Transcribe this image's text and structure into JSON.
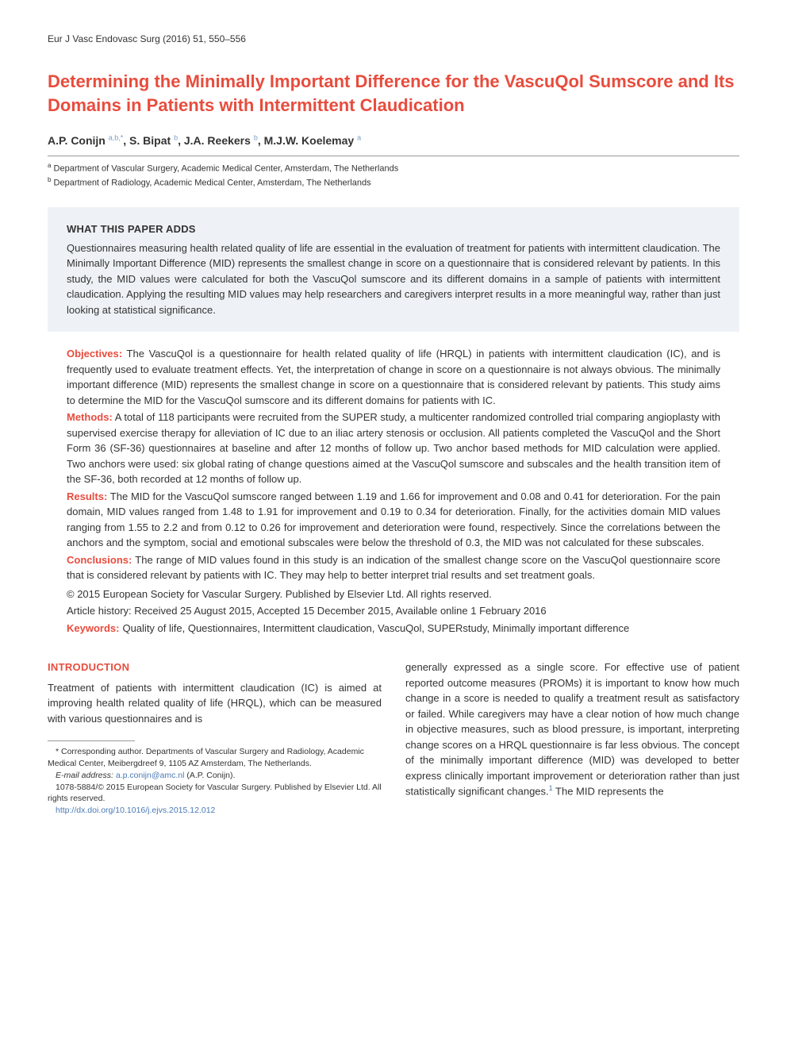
{
  "header_line": "Eur J Vasc Endovasc Surg (2016) 51, 550–556",
  "title": "Determining the Minimally Important Difference for the VascuQol Sumscore and Its Domains in Patients with Intermittent Claudication",
  "authors": [
    {
      "name": "A.P. Conijn",
      "marks": "a,b,*"
    },
    {
      "name": "S. Bipat",
      "marks": "b"
    },
    {
      "name": "J.A. Reekers",
      "marks": "b"
    },
    {
      "name": "M.J.W. Koelemay",
      "marks": "a"
    }
  ],
  "affiliations": [
    {
      "mark": "a",
      "text": "Department of Vascular Surgery, Academic Medical Center, Amsterdam, The Netherlands"
    },
    {
      "mark": "b",
      "text": "Department of Radiology, Academic Medical Center, Amsterdam, The Netherlands"
    }
  ],
  "box": {
    "heading": "WHAT THIS PAPER ADDS",
    "text": "Questionnaires measuring health related quality of life are essential in the evaluation of treatment for patients with intermittent claudication. The Minimally Important Difference (MID) represents the smallest change in score on a questionnaire that is considered relevant by patients. In this study, the MID values were calculated for both the VascuQol sumscore and its different domains in a sample of patients with intermittent claudication. Applying the resulting MID values may help researchers and caregivers interpret results in a more meaningful way, rather than just looking at statistical significance."
  },
  "abstract": {
    "objectives": {
      "label": "Objectives:",
      "text": " The VascuQol is a questionnaire for health related quality of life (HRQL) in patients with intermittent claudication (IC), and is frequently used to evaluate treatment effects. Yet, the interpretation of change in score on a questionnaire is not always obvious. The minimally important difference (MID) represents the smallest change in score on a questionnaire that is considered relevant by patients. This study aims to determine the MID for the VascuQol sumscore and its different domains for patients with IC."
    },
    "methods": {
      "label": "Methods:",
      "text": " A total of 118 participants were recruited from the SUPER study, a multicenter randomized controlled trial comparing angioplasty with supervised exercise therapy for alleviation of IC due to an iliac artery stenosis or occlusion. All patients completed the VascuQol and the Short Form 36 (SF-36) questionnaires at baseline and after 12 months of follow up. Two anchor based methods for MID calculation were applied. Two anchors were used: six global rating of change questions aimed at the VascuQol sumscore and subscales and the health transition item of the SF-36, both recorded at 12 months of follow up."
    },
    "results": {
      "label": "Results:",
      "text": " The MID for the VascuQol sumscore ranged between 1.19 and 1.66 for improvement and 0.08 and 0.41 for deterioration. For the pain domain, MID values ranged from 1.48 to 1.91 for improvement and 0.19 to 0.34 for deterioration. Finally, for the activities domain MID values ranging from 1.55 to 2.2 and from 0.12 to 0.26 for improvement and deterioration were found, respectively. Since the correlations between the anchors and the symptom, social and emotional subscales were below the threshold of 0.3, the MID was not calculated for these subscales."
    },
    "conclusions": {
      "label": "Conclusions:",
      "text": " The range of MID values found in this study is an indication of the smallest change score on the VascuQol questionnaire score that is considered relevant by patients with IC. They may help to better interpret trial results and set treatment goals."
    },
    "copyright": "© 2015 European Society for Vascular Surgery. Published by Elsevier Ltd. All rights reserved.",
    "history": "Article history: Received 25 August 2015, Accepted 15 December 2015, Available online 1 February 2016",
    "keywords": {
      "label": "Keywords:",
      "text": "Quality of life, Questionnaires, Intermittent claudication, VascuQol, SUPERstudy, Minimally important difference"
    }
  },
  "intro": {
    "heading": "INTRODUCTION",
    "p1": "Treatment of patients with intermittent claudication (IC) is aimed at improving health related quality of life (HRQL), which can be measured with various questionnaires and is",
    "p2a": "generally expressed as a single score. For effective use of patient reported outcome measures (PROMs) it is important to know how much change in a score is needed to qualify a treatment result as satisfactory or failed. While caregivers may have a clear notion of how much change in objective measures, such as blood pressure, is important, interpreting change scores on a HRQL questionnaire is far less obvious. The concept of the minimally important difference (MID) was developed to better express clinically important improvement or deterioration rather than just statistically significant changes.",
    "p2_ref": "1",
    "p2b": " The MID represents the"
  },
  "footnotes": {
    "corr1": "* Corresponding author. Departments of Vascular Surgery and Radiology, Academic Medical Center, Meibergdreef 9, 1105 AZ Amsterdam, The Netherlands.",
    "email_label": "E-mail address:",
    "email": "a.p.conijn@amc.nl",
    "email_after": " (A.P. Conijn).",
    "issn": "1078-5884/© 2015 European Society for Vascular Surgery. Published by Elsevier Ltd. All rights reserved.",
    "doi": "http://dx.doi.org/10.1016/j.ejvs.2015.12.012"
  },
  "colors": {
    "accent": "#e84c3d",
    "link": "#4a7ab5",
    "box_bg": "#eef2f6",
    "body_text": "#333333",
    "page_bg": "#ffffff"
  }
}
